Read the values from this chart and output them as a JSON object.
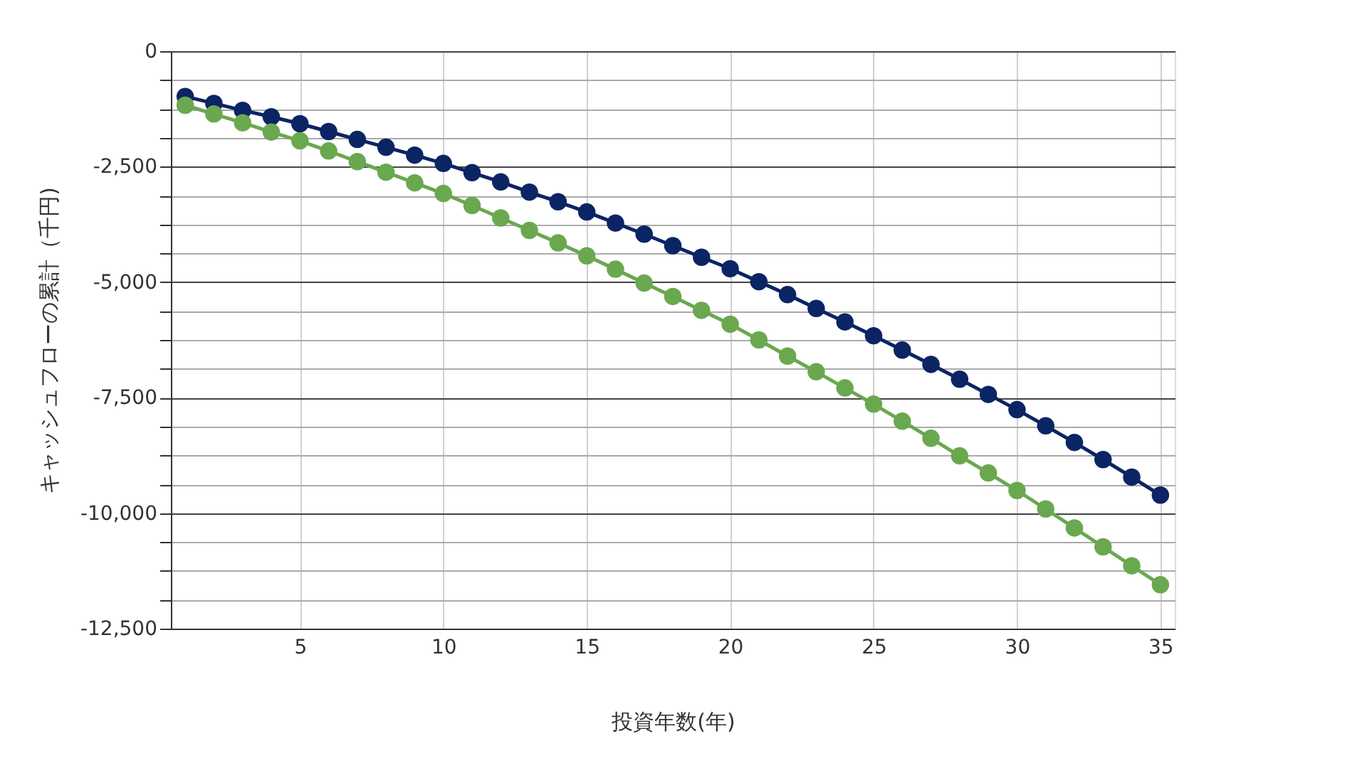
{
  "chart_data": {
    "type": "line",
    "xlabel": "投資年数(年)",
    "ylabel": "キャッシュフローの累計（千円)",
    "x": [
      1,
      2,
      3,
      4,
      5,
      6,
      7,
      8,
      9,
      10,
      11,
      12,
      13,
      14,
      15,
      16,
      17,
      18,
      19,
      20,
      21,
      22,
      23,
      24,
      25,
      26,
      27,
      28,
      29,
      30,
      31,
      32,
      33,
      34,
      35
    ],
    "series": [
      {
        "color": "#0b2463",
        "values": [
          -980,
          -1130,
          -1280,
          -1420,
          -1570,
          -1740,
          -1910,
          -2080,
          -2250,
          -2430,
          -2630,
          -2830,
          -3050,
          -3260,
          -3480,
          -3720,
          -3960,
          -4210,
          -4460,
          -4710,
          -4990,
          -5270,
          -5570,
          -5860,
          -6160,
          -6470,
          -6780,
          -7100,
          -7430,
          -7760,
          -8110,
          -8470,
          -8840,
          -9220,
          -9610
        ]
      },
      {
        "color": "#6aa84f",
        "values": [
          -1170,
          -1360,
          -1550,
          -1750,
          -1940,
          -2160,
          -2390,
          -2620,
          -2850,
          -3080,
          -3340,
          -3610,
          -3880,
          -4150,
          -4430,
          -4720,
          -5020,
          -5310,
          -5610,
          -5910,
          -6250,
          -6600,
          -6940,
          -7290,
          -7640,
          -8010,
          -8380,
          -8760,
          -9130,
          -9510,
          -9910,
          -10320,
          -10730,
          -11140,
          -11550
        ]
      }
    ],
    "xlim": [
      0.5,
      35.5
    ],
    "xticks": [
      5,
      10,
      15,
      20,
      25,
      30,
      35
    ],
    "ylim": [
      -12500,
      0
    ],
    "yticks": [
      0,
      {
        "value": -625,
        "label": null
      },
      {
        "value": -1250,
        "label": null
      },
      {
        "value": -1875,
        "label": null
      },
      {
        "value": -2500,
        "label": "-2,500"
      },
      {
        "value": -3125,
        "label": null
      },
      {
        "value": -3750,
        "label": null
      },
      {
        "value": -4375,
        "label": null
      },
      {
        "value": -5000,
        "label": "-5,000"
      },
      {
        "value": -5625,
        "label": null
      },
      {
        "value": -6250,
        "label": null
      },
      {
        "value": -6875,
        "label": null
      },
      {
        "value": -7500,
        "label": "-7,500"
      },
      {
        "value": -8125,
        "label": null
      },
      {
        "value": -8750,
        "label": null
      },
      {
        "value": -9375,
        "label": null
      },
      {
        "value": -10000,
        "label": "-10,000"
      },
      {
        "value": -10625,
        "label": null
      },
      {
        "value": -11250,
        "label": null
      },
      {
        "value": -11875,
        "label": null
      },
      {
        "value": -12500,
        "label": "-12,500"
      }
    ],
    "grid": true,
    "legend": false,
    "marker": "circle",
    "line_style": "solid"
  }
}
